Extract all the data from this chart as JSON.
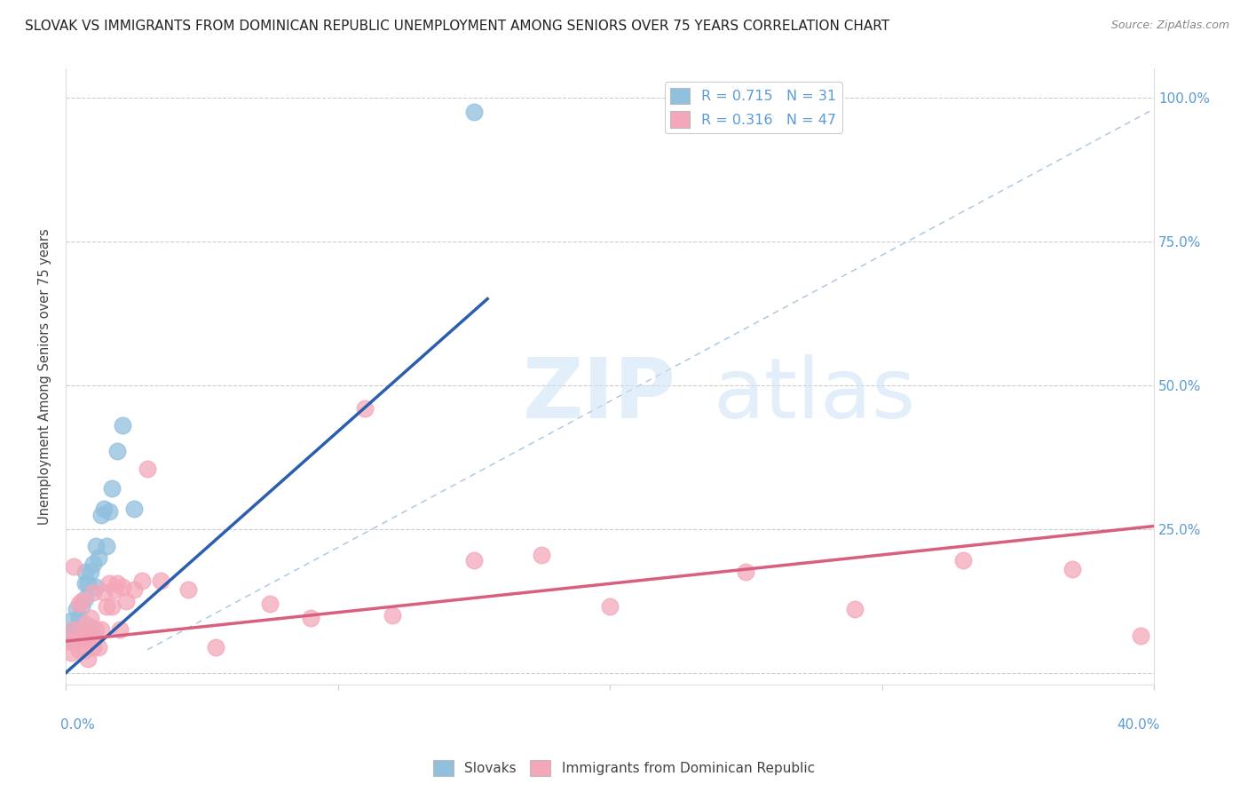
{
  "title": "SLOVAK VS IMMIGRANTS FROM DOMINICAN REPUBLIC UNEMPLOYMENT AMONG SENIORS OVER 75 YEARS CORRELATION CHART",
  "source": "Source: ZipAtlas.com",
  "ylabel": "Unemployment Among Seniors over 75 years",
  "xlim": [
    0.0,
    0.4
  ],
  "ylim": [
    -0.02,
    1.05
  ],
  "right_axis_color": "#5b9bd5",
  "legend_blue_r": "R = 0.715",
  "legend_blue_n": "N = 31",
  "legend_pink_r": "R = 0.316",
  "legend_pink_n": "N = 47",
  "blue_color": "#91bfde",
  "pink_color": "#f4a7b9",
  "blue_line_color": "#2b5fad",
  "pink_line_color": "#d95f7f",
  "diagonal_color": "#a8c4e0",
  "watermark_zip": "ZIP",
  "watermark_atlas": "atlas",
  "slovaks_x": [
    0.001,
    0.002,
    0.002,
    0.003,
    0.004,
    0.004,
    0.005,
    0.005,
    0.006,
    0.006,
    0.007,
    0.007,
    0.007,
    0.008,
    0.008,
    0.009,
    0.009,
    0.01,
    0.01,
    0.011,
    0.011,
    0.012,
    0.013,
    0.014,
    0.015,
    0.016,
    0.017,
    0.019,
    0.021,
    0.025,
    0.15
  ],
  "slovaks_y": [
    0.055,
    0.07,
    0.09,
    0.075,
    0.06,
    0.11,
    0.065,
    0.095,
    0.065,
    0.115,
    0.13,
    0.155,
    0.175,
    0.065,
    0.155,
    0.08,
    0.175,
    0.065,
    0.19,
    0.15,
    0.22,
    0.2,
    0.275,
    0.285,
    0.22,
    0.28,
    0.32,
    0.385,
    0.43,
    0.285,
    0.975
  ],
  "dominican_x": [
    0.001,
    0.002,
    0.003,
    0.003,
    0.004,
    0.005,
    0.005,
    0.006,
    0.006,
    0.007,
    0.007,
    0.008,
    0.008,
    0.009,
    0.009,
    0.01,
    0.01,
    0.011,
    0.012,
    0.013,
    0.014,
    0.015,
    0.016,
    0.017,
    0.018,
    0.019,
    0.02,
    0.021,
    0.022,
    0.025,
    0.028,
    0.03,
    0.035,
    0.045,
    0.055,
    0.075,
    0.09,
    0.11,
    0.12,
    0.15,
    0.175,
    0.2,
    0.25,
    0.29,
    0.33,
    0.37,
    0.395
  ],
  "dominican_y": [
    0.055,
    0.035,
    0.075,
    0.185,
    0.055,
    0.04,
    0.12,
    0.07,
    0.125,
    0.04,
    0.085,
    0.06,
    0.025,
    0.095,
    0.06,
    0.045,
    0.14,
    0.075,
    0.045,
    0.075,
    0.14,
    0.115,
    0.155,
    0.115,
    0.145,
    0.155,
    0.075,
    0.15,
    0.125,
    0.145,
    0.16,
    0.355,
    0.16,
    0.145,
    0.045,
    0.12,
    0.095,
    0.46,
    0.1,
    0.195,
    0.205,
    0.115,
    0.175,
    0.11,
    0.195,
    0.18,
    0.065
  ],
  "blue_line_x": [
    0.0,
    0.155
  ],
  "blue_line_y": [
    0.0,
    0.65
  ],
  "pink_line_x": [
    0.0,
    0.4
  ],
  "pink_line_y": [
    0.055,
    0.255
  ],
  "diag_line_x": [
    0.03,
    0.4
  ],
  "diag_line_y": [
    0.04,
    0.98
  ]
}
